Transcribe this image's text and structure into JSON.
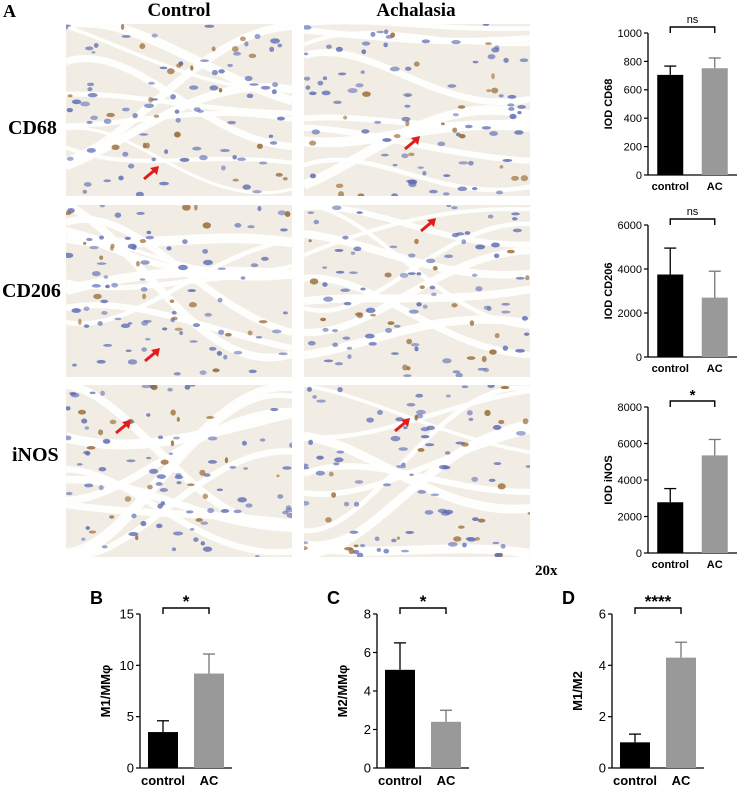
{
  "labels": {
    "panel_a": "A",
    "col_control": "Control",
    "col_achalasia": "Achalasia",
    "row_cd68": "CD68",
    "row_cd206": "CD206",
    "row_inos": "iNOS",
    "magnification": "20x"
  },
  "colors": {
    "control_bar": "#000000",
    "ac_bar": "#999999",
    "nucleus": "#5c6bb5",
    "stain": "#9a6a35",
    "arrow": "#e31b1b"
  },
  "chart_data": [
    {
      "id": "cd68",
      "type": "bar",
      "panel_letter": "",
      "categories": [
        "control",
        "AC"
      ],
      "values": [
        705,
        752
      ],
      "errors": [
        62,
        72
      ],
      "ylabel": "IOD CD68",
      "ylim": [
        0,
        1000
      ],
      "yticks": [
        0,
        200,
        400,
        600,
        800,
        1000
      ],
      "significance": "ns",
      "grid": false
    },
    {
      "id": "cd206",
      "type": "bar",
      "panel_letter": "",
      "categories": [
        "control",
        "AC"
      ],
      "values": [
        3750,
        2700
      ],
      "errors": [
        1200,
        1200
      ],
      "ylabel": "IOD CD206",
      "ylim": [
        0,
        6000
      ],
      "yticks": [
        0,
        2000,
        4000,
        6000
      ],
      "significance": "ns",
      "grid": false
    },
    {
      "id": "inos",
      "type": "bar",
      "panel_letter": "",
      "categories": [
        "control",
        "AC"
      ],
      "values": [
        2780,
        5350
      ],
      "errors": [
        750,
        870
      ],
      "ylabel": "IOD iNOS",
      "ylim": [
        0,
        8000
      ],
      "yticks": [
        0,
        2000,
        4000,
        6000,
        8000
      ],
      "significance": "*",
      "grid": false
    },
    {
      "id": "m1",
      "type": "bar",
      "panel_letter": "B",
      "categories": [
        "control",
        "AC"
      ],
      "values": [
        3.5,
        9.2
      ],
      "errors": [
        1.1,
        1.9
      ],
      "ylabel": "M1/MMφ",
      "ylim": [
        0,
        15
      ],
      "yticks": [
        0,
        5,
        10,
        15
      ],
      "significance": "*",
      "grid": false
    },
    {
      "id": "m2",
      "type": "bar",
      "panel_letter": "C",
      "categories": [
        "control",
        "AC"
      ],
      "values": [
        5.1,
        2.4
      ],
      "errors": [
        1.4,
        0.6
      ],
      "ylabel": "M2/MMφ",
      "ylim": [
        0,
        8
      ],
      "yticks": [
        0,
        2,
        4,
        6,
        8
      ],
      "significance": "*",
      "grid": false
    },
    {
      "id": "m1m2",
      "type": "bar",
      "panel_letter": "D",
      "categories": [
        "control",
        "AC"
      ],
      "values": [
        1.0,
        4.3
      ],
      "errors": [
        0.32,
        0.6
      ],
      "ylabel": "M1/M2",
      "ylim": [
        0,
        6
      ],
      "yticks": [
        0,
        2,
        4,
        6
      ],
      "significance": "****",
      "grid": false
    }
  ]
}
